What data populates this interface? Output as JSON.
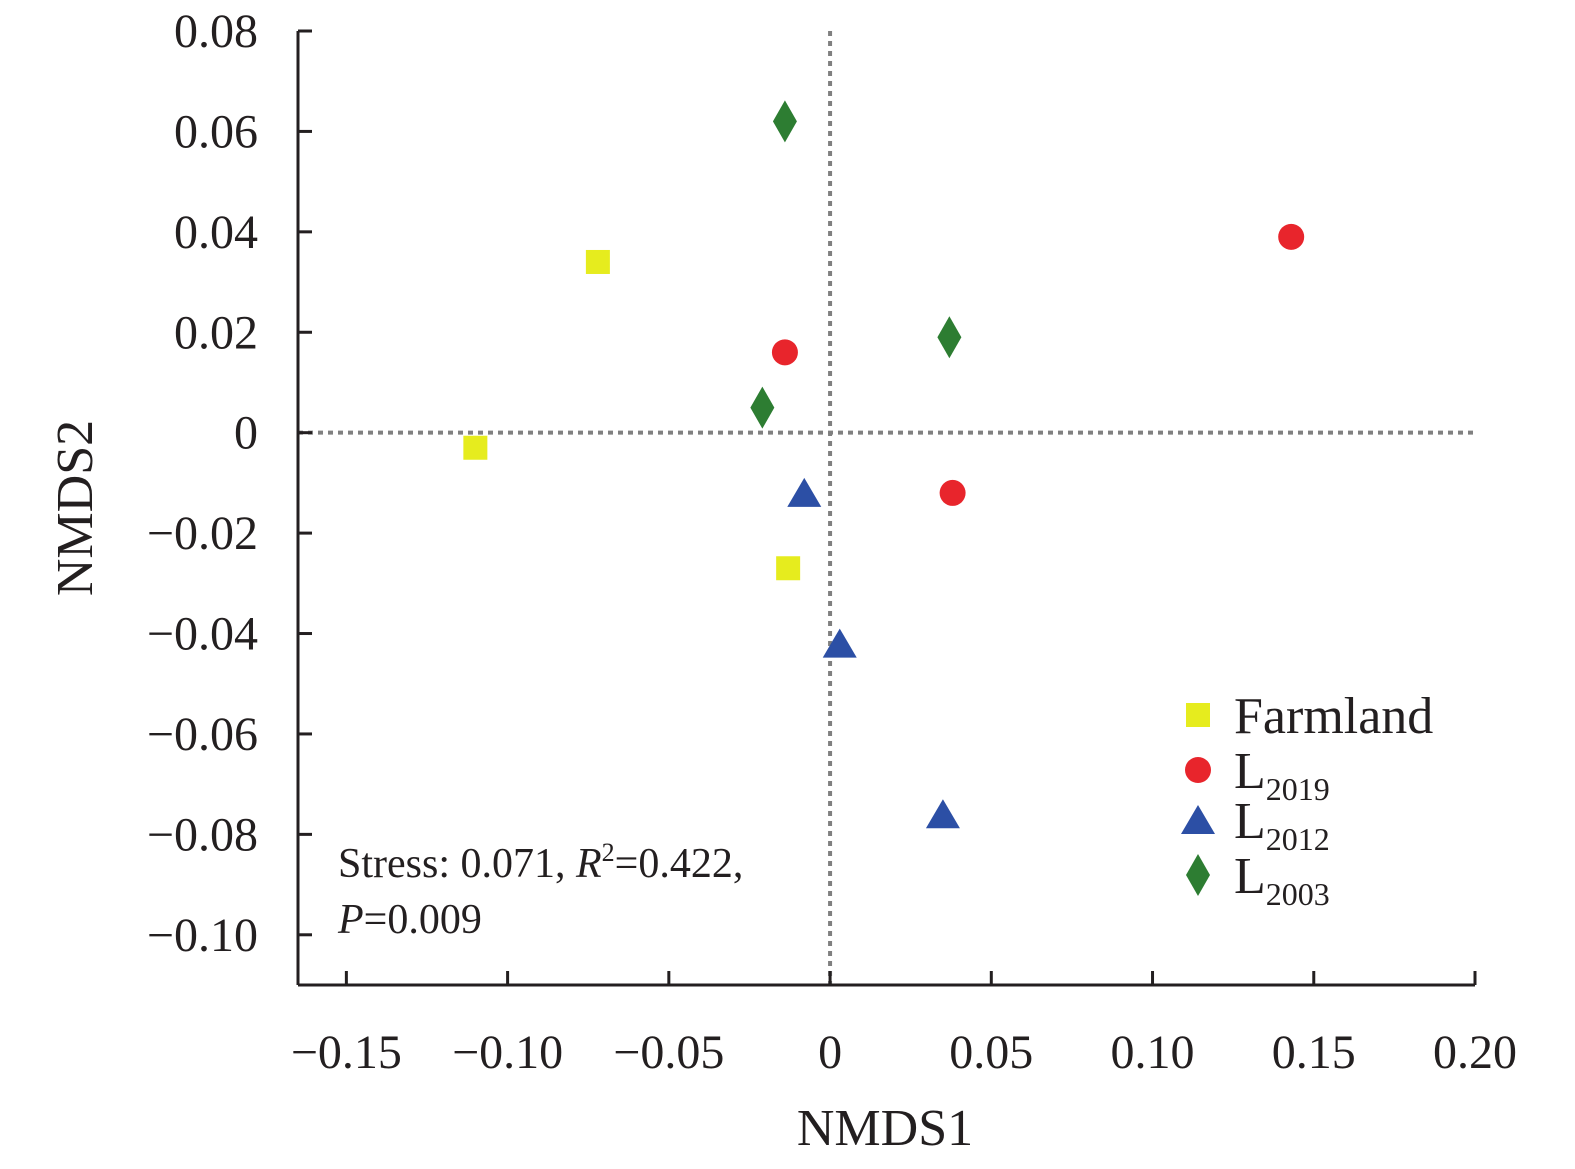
{
  "chart_data": {
    "type": "scatter",
    "title": "",
    "xlabel": "NMDS1",
    "ylabel": "NMDS2",
    "xlim": [
      -0.165,
      0.2
    ],
    "ylim": [
      -0.11,
      0.08
    ],
    "xticks": [
      -0.15,
      -0.1,
      -0.05,
      0,
      0.05,
      0.1,
      0.15,
      0.2
    ],
    "xtick_labels": [
      "−0.15",
      "−0.10",
      "−0.05",
      "0",
      "0.05",
      "0.10",
      "0.15",
      "0.20"
    ],
    "yticks": [
      0.08,
      0.06,
      0.04,
      0.02,
      0,
      -0.02,
      -0.04,
      -0.06,
      -0.08,
      -0.1
    ],
    "ytick_labels": [
      "0.08",
      "0.06",
      "0.04",
      "0.02",
      "0",
      "−0.02",
      "−0.04",
      "−0.06",
      "−0.08",
      "−0.10"
    ],
    "grid": false,
    "reference_lines": {
      "x": 0,
      "y": 0,
      "style": "dotted",
      "color": "#808080"
    },
    "legend_position": "bottom-right",
    "series": [
      {
        "name": "Farmland",
        "label_main": "Farmland",
        "label_sub": "",
        "marker": "square",
        "color": "#e6ec1e",
        "points": [
          [
            -0.072,
            0.034
          ],
          [
            -0.11,
            -0.003
          ],
          [
            -0.013,
            -0.027
          ]
        ]
      },
      {
        "name": "L2019",
        "label_main": "L",
        "label_sub": "2019",
        "marker": "circle",
        "color": "#e8252c",
        "points": [
          [
            0.143,
            0.039
          ],
          [
            -0.014,
            0.016
          ],
          [
            0.038,
            -0.012
          ]
        ]
      },
      {
        "name": "L2012",
        "label_main": "L",
        "label_sub": "2012",
        "marker": "triangle",
        "color": "#2c4fa5",
        "points": [
          [
            -0.008,
            -0.012
          ],
          [
            0.003,
            -0.042
          ],
          [
            0.035,
            -0.076
          ]
        ]
      },
      {
        "name": "L2003",
        "label_main": "L",
        "label_sub": "2003",
        "marker": "diamond",
        "color": "#2d7d32",
        "points": [
          [
            -0.014,
            0.062
          ],
          [
            0.037,
            0.019
          ],
          [
            -0.021,
            0.005
          ]
        ]
      }
    ],
    "annotation": {
      "line1_prefix": "Stress: 0.071, ",
      "r_symbol": "R",
      "r_sup": "2",
      "line1_suffix": "=0.422,",
      "p_symbol": "P",
      "line2_suffix": "=0.009"
    }
  }
}
